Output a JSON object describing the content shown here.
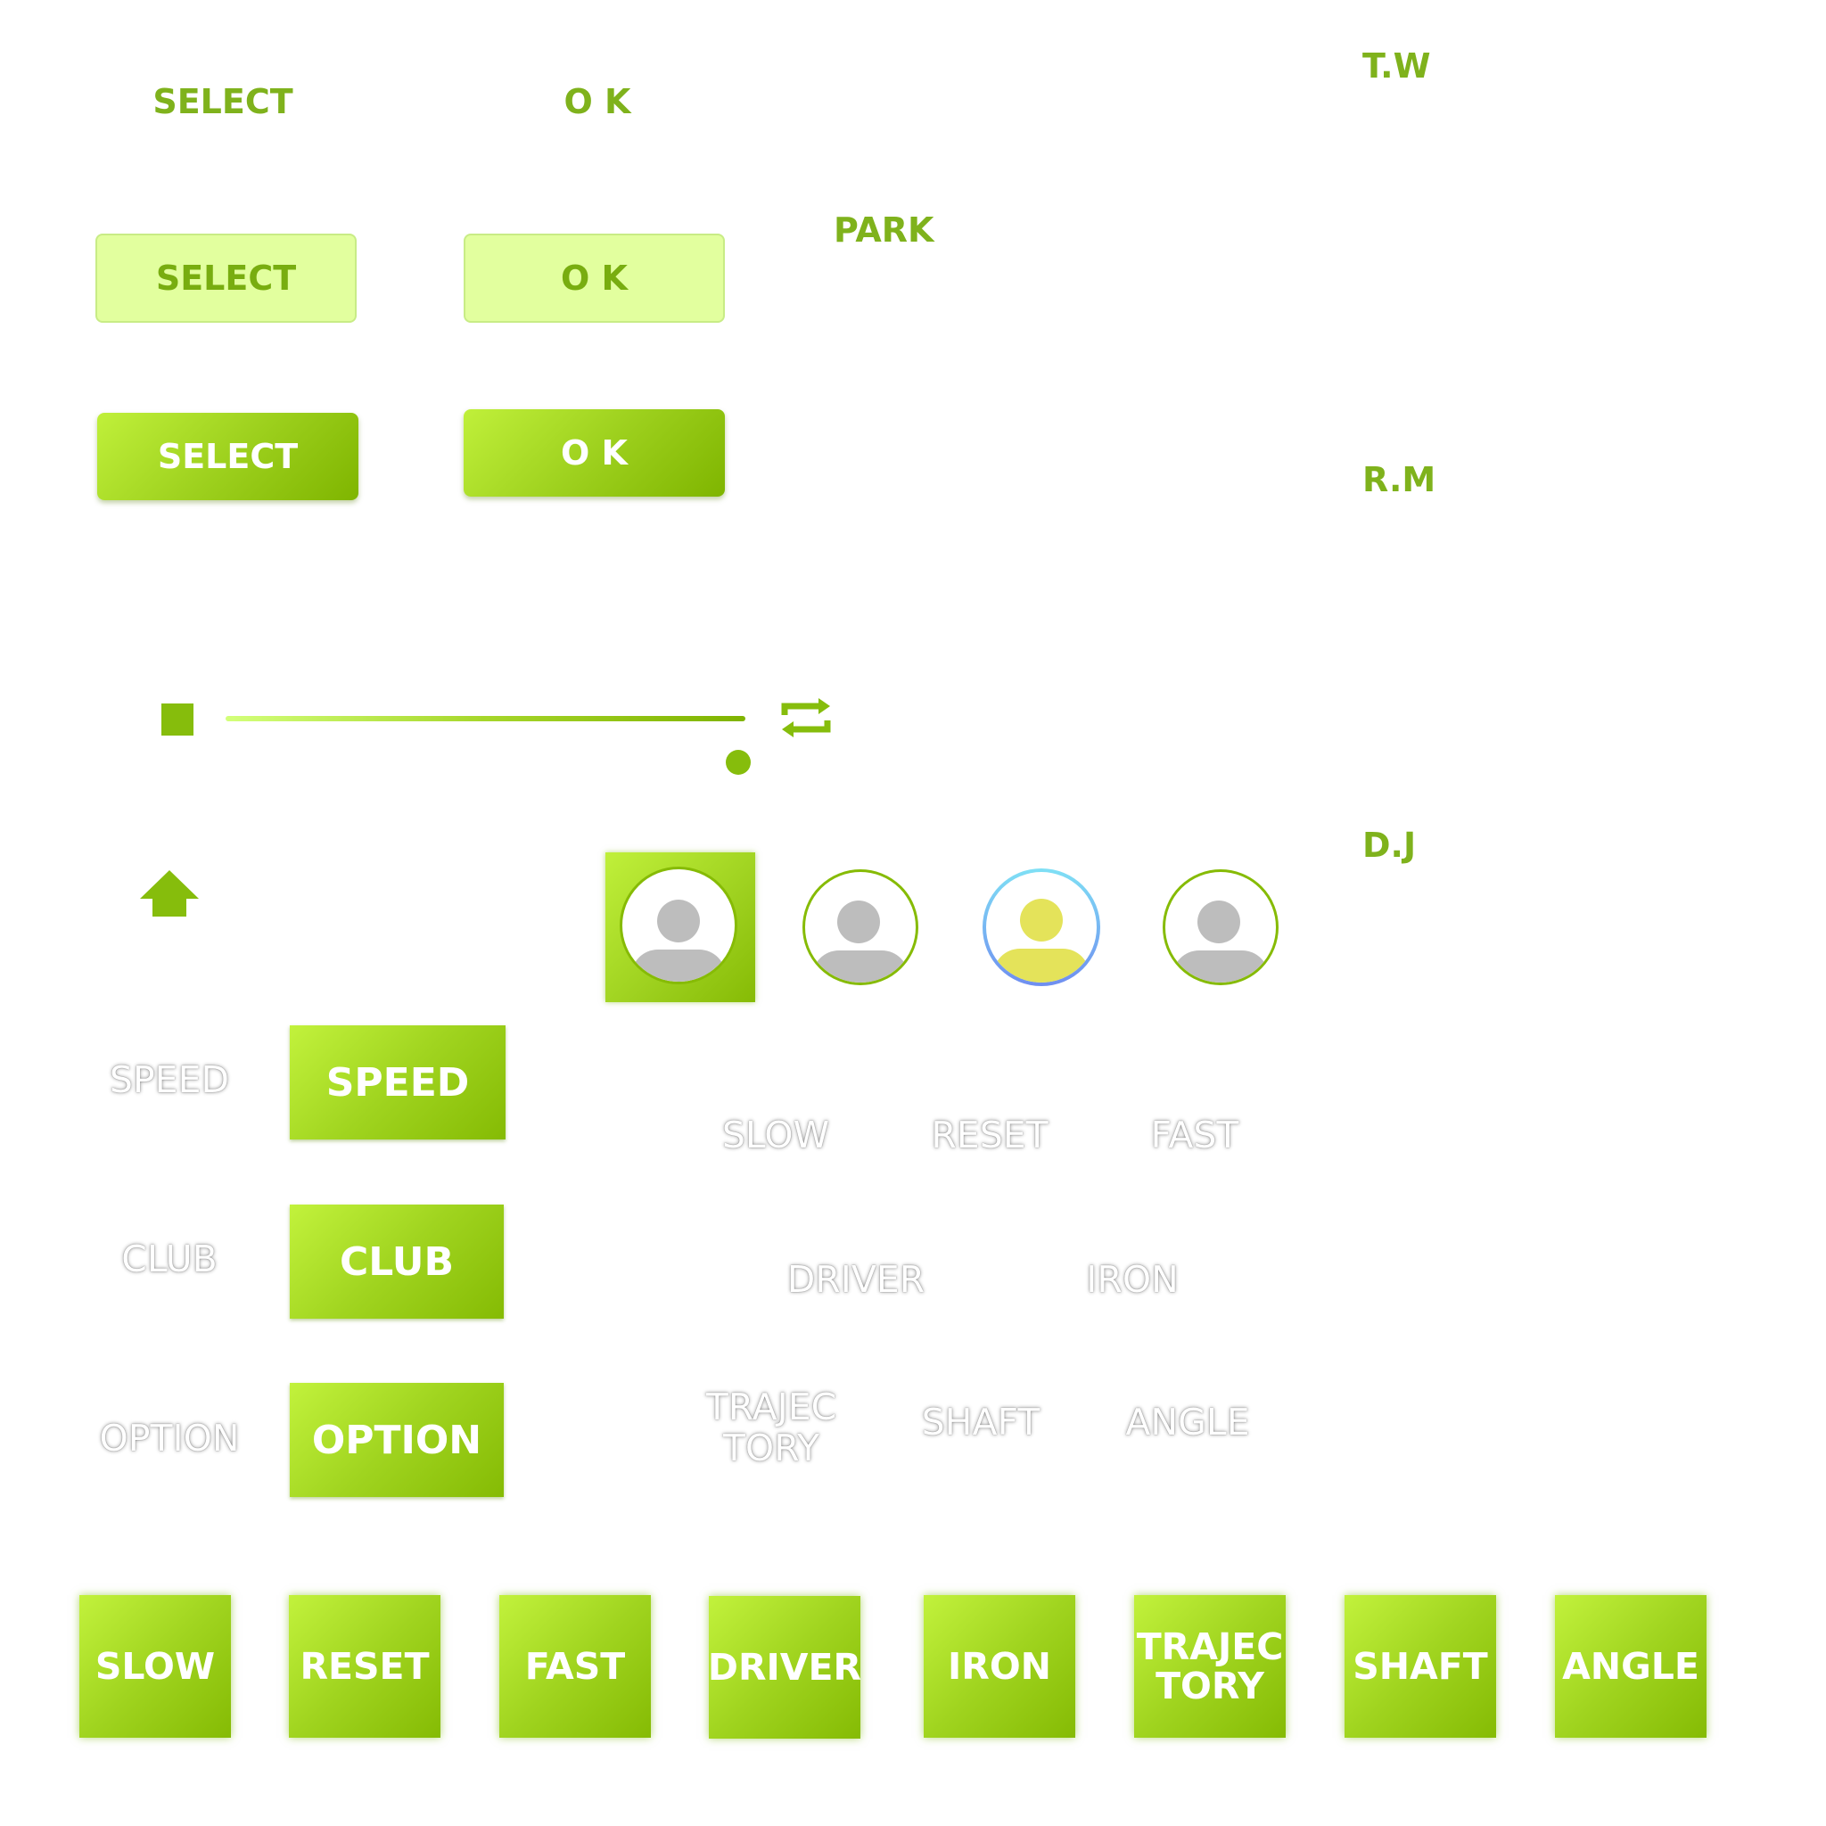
{
  "header_labels": {
    "select": "SELECT",
    "ok": "O K",
    "park": "PARK",
    "players": [
      "T.W",
      "R.M",
      "D.J"
    ]
  },
  "buttons_light": {
    "select": "SELECT",
    "ok": "O K"
  },
  "buttons_green": {
    "select": "SELECT",
    "ok": "O K"
  },
  "player_bar": {
    "stop_icon": "stop-square-icon",
    "repeat_icon": "repeat-icon",
    "progress": 0.98
  },
  "home_icon": "home-arrow-icon",
  "avatars": [
    {
      "name": "avatar-selected",
      "icon": "user-icon",
      "state": "selected"
    },
    {
      "name": "avatar-2",
      "icon": "user-icon",
      "state": "normal"
    },
    {
      "name": "avatar-3",
      "icon": "user-icon",
      "state": "active"
    },
    {
      "name": "avatar-4",
      "icon": "user-icon",
      "state": "normal"
    }
  ],
  "menu_ghost": [
    "SPEED",
    "CLUB",
    "OPTION"
  ],
  "menu_buttons": [
    "SPEED",
    "CLUB",
    "OPTION"
  ],
  "ghost_options": {
    "speed": [
      "SLOW",
      "RESET",
      "FAST"
    ],
    "club": [
      "DRIVER",
      "IRON"
    ],
    "option": [
      "TRAJEC\nTORY",
      "SHAFT",
      "ANGLE"
    ]
  },
  "tiles": [
    "SLOW",
    "RESET",
    "FAST",
    "DRIVER",
    "IRON",
    "TRAJEC\nTORY",
    "SHAFT",
    "ANGLE"
  ],
  "colors": {
    "accent": "#7fb21c",
    "light_button": "#e2ff9e",
    "active_avatar_fill": "#e4e35a",
    "avatar_ring_active": "#6fa6f0"
  }
}
